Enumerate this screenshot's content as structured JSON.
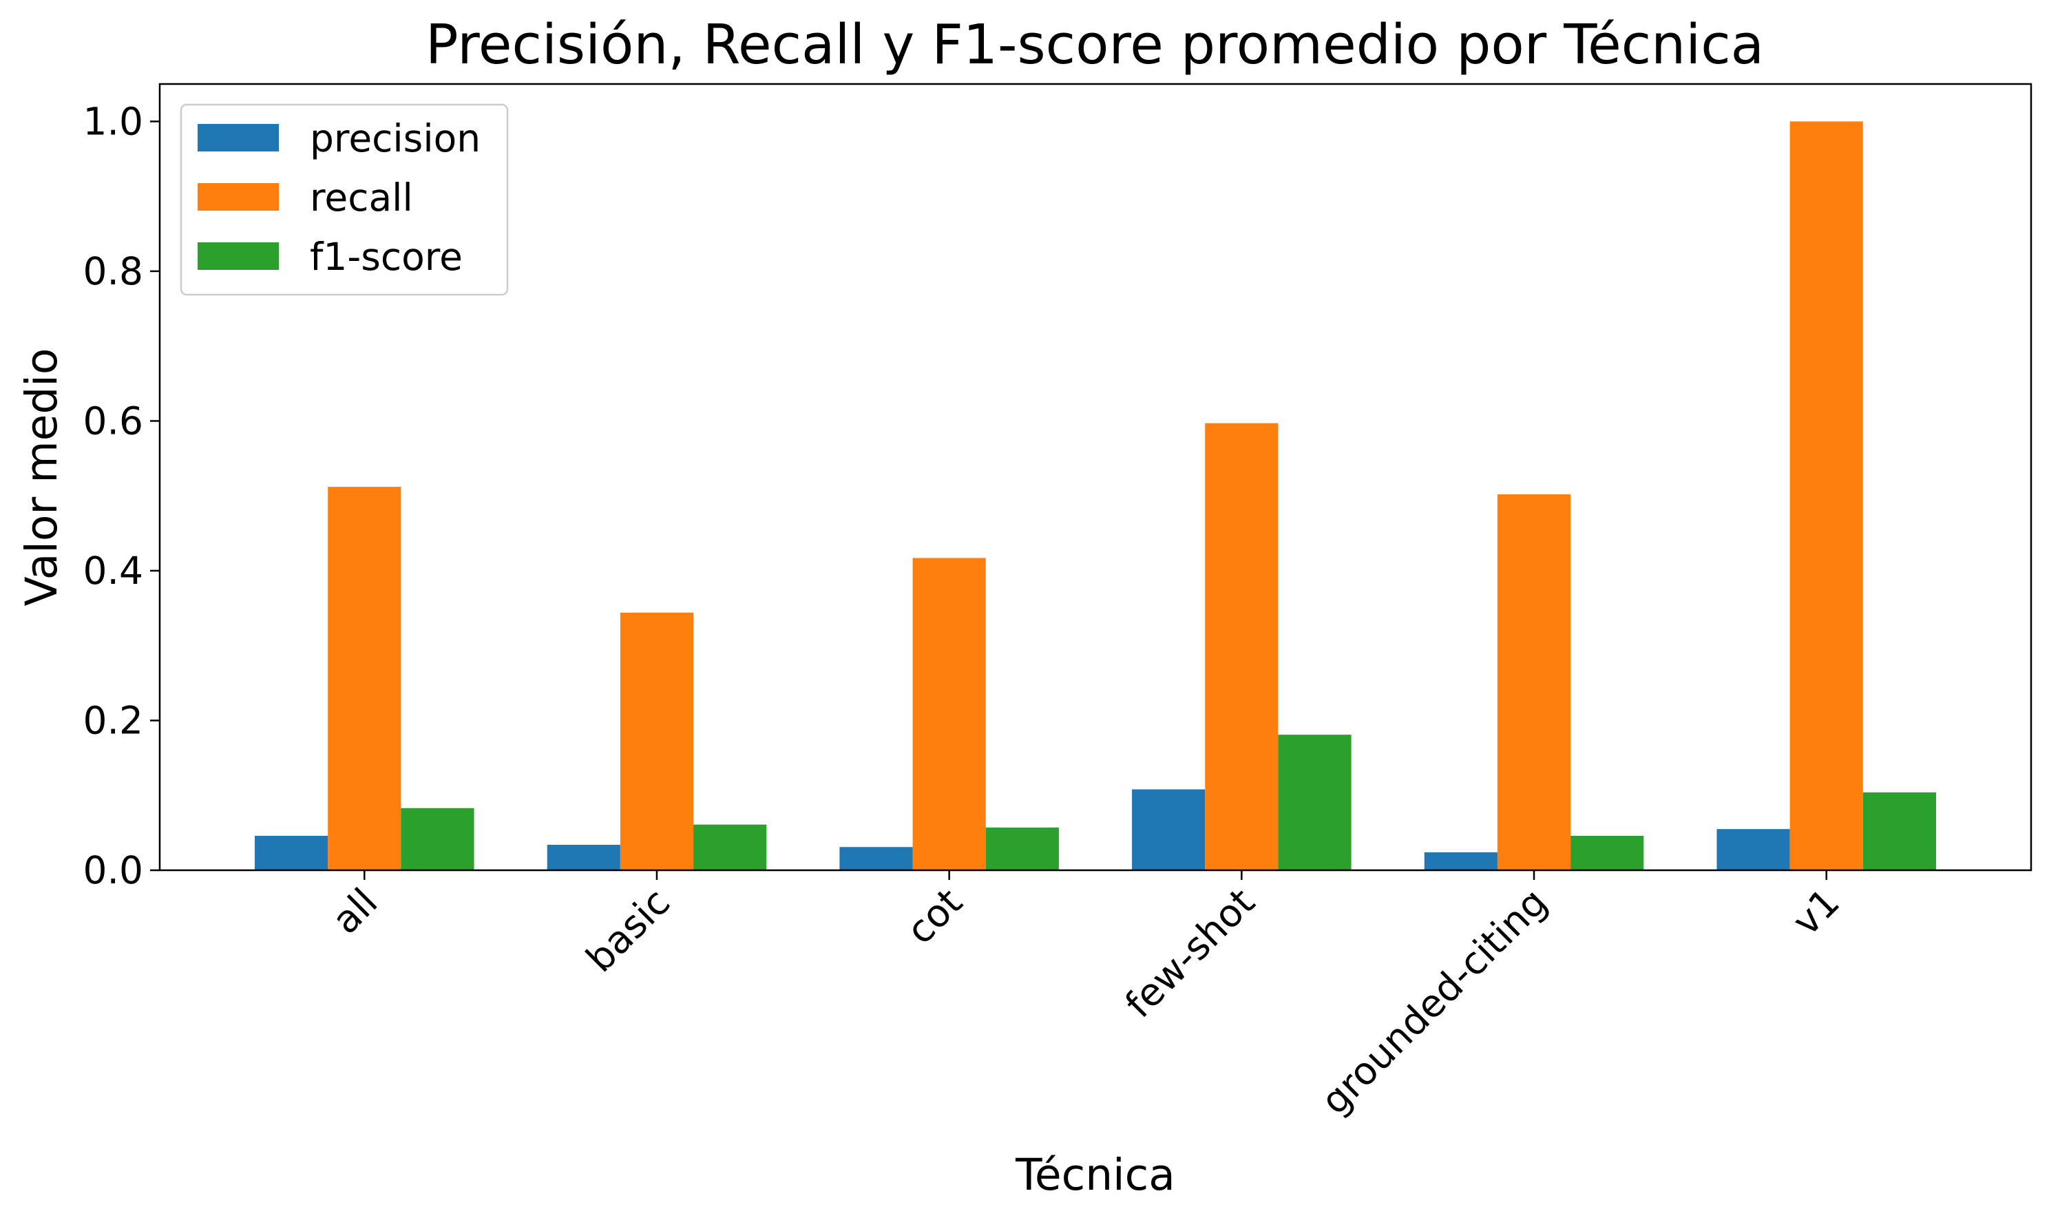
{
  "chart_data": {
    "type": "bar",
    "title": "Precisión, Recall y F1-score promedio por Técnica",
    "xlabel": "Técnica",
    "ylabel": "Valor medio",
    "categories": [
      "all",
      "basic",
      "cot",
      "few-shot",
      "grounded-citing",
      "v1"
    ],
    "series": [
      {
        "name": "precision",
        "color": "#1f77b4",
        "values": [
          0.046,
          0.034,
          0.031,
          0.108,
          0.024,
          0.055
        ]
      },
      {
        "name": "recall",
        "color": "#ff7f0e",
        "values": [
          0.512,
          0.344,
          0.417,
          0.597,
          0.502,
          1.0
        ]
      },
      {
        "name": "f1-score",
        "color": "#2ca02c",
        "values": [
          0.083,
          0.061,
          0.057,
          0.181,
          0.046,
          0.104
        ]
      }
    ],
    "ylim": [
      0,
      1.05
    ],
    "yticks": [
      "0.0",
      "0.2",
      "0.4",
      "0.6",
      "0.8",
      "1.0"
    ],
    "grid": false,
    "legend_position": "top-left"
  }
}
